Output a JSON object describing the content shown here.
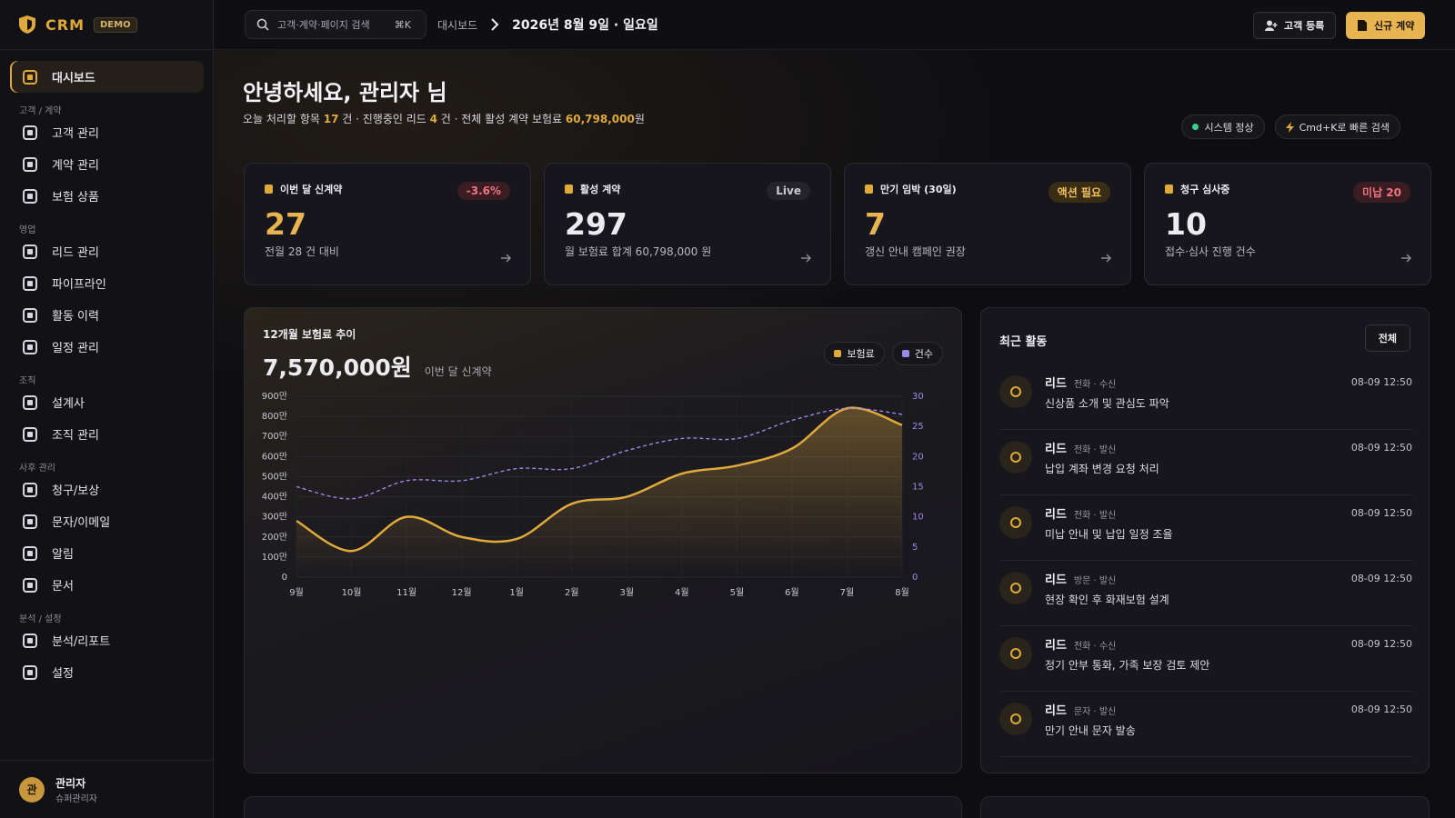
{
  "brand": {
    "name": "CRM",
    "badge": "DEMO"
  },
  "nav": [
    {
      "items": [
        "대시보드"
      ]
    },
    {
      "title": "고객 / 계약",
      "items": [
        "고객 관리",
        "계약 관리",
        "보험 상품"
      ]
    },
    {
      "title": "영업",
      "items": [
        "리드 관리",
        "파이프라인",
        "활동 이력",
        "일정 관리"
      ]
    },
    {
      "title": "조직",
      "items": [
        "설계사",
        "조직 관리"
      ]
    },
    {
      "title": "사후 관리",
      "items": [
        "청구/보상",
        "문자/이메일",
        "알림",
        "문서"
      ]
    },
    {
      "title": "분석 / 설정",
      "items": [
        "분석/리포트",
        "설정"
      ]
    }
  ],
  "user": {
    "avatar": "관",
    "name": "관리자",
    "role": "슈퍼관리자"
  },
  "topbar": {
    "search": "고객·계약·페이지 검색",
    "shortcut": "⌘K",
    "breadcrumb": "대시보드",
    "date": "2026년 8월 9일 · 일요일",
    "buttons": [
      "고객 등록",
      "신규 계약"
    ]
  },
  "greeting": {
    "title": "안녕하세요, 관리자 님",
    "summary": [
      "오늘 처리할 항목 ",
      "17",
      " 건 · 진행중인 리드 ",
      "4",
      " 건 · 전체 활성 계약 보험료 ",
      "60,798,000",
      "원"
    ],
    "chips": [
      "시스템 정상",
      "Cmd+K로 빠른 검색"
    ]
  },
  "kpis": [
    {
      "label": "이번 달 신계약",
      "badge": "-3.6%",
      "value": 27,
      "sub": "전월 28 건 대비"
    },
    {
      "label": "활성 계약",
      "badge": "Live",
      "value": 297,
      "sub": "월 보험료 합계  60,798,000 원"
    },
    {
      "label": "만기 임박 (30일)",
      "badge": "액션 필요",
      "value": 7,
      "sub": "갱신 안내 캠페인 권장"
    },
    {
      "label": "청구 심사중",
      "badge": "미납 20",
      "value": 10,
      "sub": "접수·심사 진행 건수"
    }
  ],
  "chart_data": {
    "type": "line",
    "title": "12개월 보험료 추이",
    "headline": "7,570,000원",
    "headline_note": "이번 달 신계약",
    "categories": [
      "9월",
      "10월",
      "11월",
      "12월",
      "1월",
      "2월",
      "3월",
      "4월",
      "5월",
      "6월",
      "7월",
      "8월"
    ],
    "series": [
      {
        "name": "보험료",
        "color": "#e0a93c",
        "area": true,
        "values": [
          280,
          130,
          300,
          200,
          190,
          365,
          400,
          515,
          555,
          640,
          840,
          757
        ]
      },
      {
        "name": "건수",
        "color": "#9d88ea",
        "axis": "y2",
        "dashed": true,
        "values": [
          15,
          13,
          16,
          16,
          18,
          18,
          21,
          23,
          23,
          26,
          28,
          27
        ]
      }
    ],
    "ylim": [
      0,
      900
    ],
    "yticks": [
      0,
      {
        "value": 100,
        "label": "100만"
      },
      {
        "value": 200,
        "label": "200만"
      },
      {
        "value": 300,
        "label": "300만"
      },
      {
        "value": 400,
        "label": "400만"
      },
      {
        "value": 500,
        "label": "500만"
      },
      {
        "value": 600,
        "label": "600만"
      },
      {
        "value": 700,
        "label": "700만"
      },
      {
        "value": 800,
        "label": "800만"
      },
      {
        "value": 900,
        "label": "900만"
      }
    ],
    "y2lim": [
      0,
      30
    ],
    "y2ticks": [
      0,
      5,
      10,
      15,
      20,
      25,
      30
    ],
    "grid": true
  },
  "activity": {
    "title": "최근 활동",
    "button": "전체",
    "items": [
      {
        "type": "리드",
        "channel": "전화 · 수신",
        "time": "08-09 12:50",
        "desc": "신상품 소개 및 관심도 파악"
      },
      {
        "type": "리드",
        "channel": "전화 · 발신",
        "time": "08-09 12:50",
        "desc": "납입 계좌 변경 요청 처리"
      },
      {
        "type": "리드",
        "channel": "전화 · 발신",
        "time": "08-09 12:50",
        "desc": "미납 안내 및 납입 일정 조율"
      },
      {
        "type": "리드",
        "channel": "방문 · 발신",
        "time": "08-09 12:50",
        "desc": "현장 확인 후 화재보험 설계"
      },
      {
        "type": "리드",
        "channel": "전화 · 수신",
        "time": "08-09 12:50",
        "desc": "정기 안부 통화, 가족 보장 검토 제안"
      },
      {
        "type": "리드",
        "channel": "문자 · 발신",
        "time": "08-09 12:50",
        "desc": "만기 안내 문자 발송"
      }
    ]
  }
}
